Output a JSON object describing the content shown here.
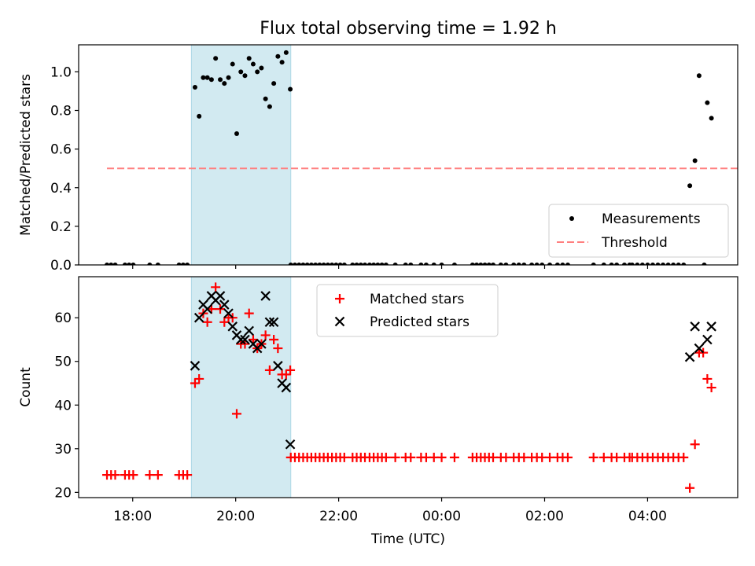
{
  "title": "Flux total observing time = 1.92 h",
  "colors": {
    "shade": "#add8e6",
    "matched": "#ff0000",
    "predicted": "#000000",
    "threshold": "#ff7f7f",
    "points": "#000000"
  },
  "chart_data": [
    {
      "type": "scatter",
      "ylabel": "Matched/Predicted stars",
      "xlim": [
        16.95,
        29.75
      ],
      "ylim": [
        0,
        1.14
      ],
      "yticks": [
        0.0,
        0.2,
        0.4,
        0.6,
        0.8,
        1.0
      ],
      "ytick_labels": [
        "0.0",
        "0.2",
        "0.4",
        "0.6",
        "0.8",
        "1.0"
      ],
      "shaded_x_range": [
        19.14,
        21.07
      ],
      "threshold": {
        "y": 0.5,
        "x_range": [
          17.5,
          30.2
        ]
      },
      "legend": {
        "position": "lower-right",
        "entries": [
          "Measurements",
          "Threshold"
        ]
      },
      "series": [
        {
          "name": "Measurements",
          "points": [
            [
              17.5,
              0
            ],
            [
              17.58,
              0
            ],
            [
              17.66,
              0
            ],
            [
              17.85,
              0
            ],
            [
              17.93,
              0
            ],
            [
              18.01,
              0
            ],
            [
              18.33,
              0
            ],
            [
              18.49,
              0
            ],
            [
              18.9,
              0
            ],
            [
              18.98,
              0
            ],
            [
              19.06,
              0
            ],
            [
              19.21,
              0.92
            ],
            [
              19.29,
              0.77
            ],
            [
              19.37,
              0.97
            ],
            [
              19.45,
              0.97
            ],
            [
              19.53,
              0.96
            ],
            [
              19.61,
              1.07
            ],
            [
              19.7,
              0.96
            ],
            [
              19.78,
              0.94
            ],
            [
              19.86,
              0.97
            ],
            [
              19.94,
              1.04
            ],
            [
              20.02,
              0.68
            ],
            [
              20.1,
              1.0
            ],
            [
              20.18,
              0.98
            ],
            [
              20.26,
              1.07
            ],
            [
              20.34,
              1.04
            ],
            [
              20.42,
              1.0
            ],
            [
              20.5,
              1.02
            ],
            [
              20.58,
              0.86
            ],
            [
              20.66,
              0.82
            ],
            [
              20.74,
              0.94
            ],
            [
              20.82,
              1.08
            ],
            [
              20.9,
              1.05
            ],
            [
              20.98,
              1.1
            ],
            [
              21.06,
              0.91
            ],
            [
              21.07,
              0
            ],
            [
              21.15,
              0
            ],
            [
              21.23,
              0
            ],
            [
              21.31,
              0
            ],
            [
              21.39,
              0
            ],
            [
              21.47,
              0
            ],
            [
              21.55,
              0
            ],
            [
              21.63,
              0
            ],
            [
              21.71,
              0
            ],
            [
              21.79,
              0
            ],
            [
              21.87,
              0
            ],
            [
              21.95,
              0
            ],
            [
              22.03,
              0
            ],
            [
              22.11,
              0
            ],
            [
              22.27,
              0
            ],
            [
              22.35,
              0
            ],
            [
              22.43,
              0
            ],
            [
              22.51,
              0
            ],
            [
              22.6,
              0
            ],
            [
              22.68,
              0
            ],
            [
              22.76,
              0
            ],
            [
              22.84,
              0
            ],
            [
              22.92,
              0
            ],
            [
              23.1,
              0
            ],
            [
              23.3,
              0
            ],
            [
              23.4,
              0
            ],
            [
              23.6,
              0
            ],
            [
              23.7,
              0
            ],
            [
              23.85,
              0
            ],
            [
              24.0,
              0
            ],
            [
              24.25,
              0
            ],
            [
              24.6,
              0
            ],
            [
              24.68,
              0
            ],
            [
              24.76,
              0
            ],
            [
              24.84,
              0
            ],
            [
              24.92,
              0
            ],
            [
              25.0,
              0
            ],
            [
              25.15,
              0
            ],
            [
              25.25,
              0
            ],
            [
              25.4,
              0
            ],
            [
              25.5,
              0
            ],
            [
              25.6,
              0
            ],
            [
              25.75,
              0
            ],
            [
              25.85,
              0
            ],
            [
              25.95,
              0
            ],
            [
              26.1,
              0
            ],
            [
              26.25,
              0
            ],
            [
              26.35,
              0
            ],
            [
              26.45,
              0
            ],
            [
              26.95,
              0
            ],
            [
              27.15,
              0
            ],
            [
              27.3,
              0
            ],
            [
              27.4,
              0
            ],
            [
              27.55,
              0
            ],
            [
              27.65,
              0
            ],
            [
              27.7,
              0
            ],
            [
              27.8,
              0
            ],
            [
              27.9,
              0
            ],
            [
              28.0,
              0
            ],
            [
              28.1,
              0
            ],
            [
              28.2,
              0
            ],
            [
              28.3,
              0
            ],
            [
              28.4,
              0
            ],
            [
              28.5,
              0
            ],
            [
              28.6,
              0
            ],
            [
              28.7,
              0
            ],
            [
              29.1,
              0
            ],
            [
              28.82,
              0.41
            ],
            [
              28.92,
              0.54
            ],
            [
              29.0,
              0.98
            ],
            [
              29.16,
              0.84
            ],
            [
              29.24,
              0.76
            ]
          ]
        }
      ]
    },
    {
      "type": "scatter",
      "ylabel": "Count",
      "xlabel": "Time (UTC)",
      "xlim": [
        16.95,
        29.75
      ],
      "ylim": [
        18.8,
        69.4
      ],
      "yticks": [
        20,
        30,
        40,
        50,
        60
      ],
      "ytick_labels": [
        "20",
        "30",
        "40",
        "50",
        "60"
      ],
      "xticks": [
        18,
        20,
        22,
        24,
        26,
        28
      ],
      "xtick_labels": [
        "18:00",
        "20:00",
        "22:00",
        "00:00",
        "02:00",
        "04:00"
      ],
      "shaded_x_range": [
        19.14,
        21.07
      ],
      "legend": {
        "position": "top-center",
        "entries": [
          "Matched stars",
          "Predicted stars"
        ]
      },
      "series": [
        {
          "name": "Matched stars",
          "marker": "plus",
          "points": [
            [
              17.5,
              24
            ],
            [
              17.58,
              24
            ],
            [
              17.66,
              24
            ],
            [
              17.85,
              24
            ],
            [
              17.93,
              24
            ],
            [
              18.01,
              24
            ],
            [
              18.33,
              24
            ],
            [
              18.49,
              24
            ],
            [
              18.9,
              24
            ],
            [
              18.98,
              24
            ],
            [
              19.06,
              24
            ],
            [
              19.21,
              45
            ],
            [
              19.29,
              46
            ],
            [
              19.37,
              61
            ],
            [
              19.45,
              59
            ],
            [
              19.53,
              62
            ],
            [
              19.61,
              67
            ],
            [
              19.7,
              62
            ],
            [
              19.78,
              59
            ],
            [
              19.86,
              60
            ],
            [
              19.94,
              60
            ],
            [
              20.02,
              38
            ],
            [
              20.1,
              54
            ],
            [
              20.18,
              54
            ],
            [
              20.26,
              61
            ],
            [
              20.34,
              55
            ],
            [
              20.42,
              53
            ],
            [
              20.5,
              54
            ],
            [
              20.58,
              56
            ],
            [
              20.66,
              48
            ],
            [
              20.74,
              55
            ],
            [
              20.82,
              53
            ],
            [
              20.9,
              47
            ],
            [
              20.98,
              47
            ],
            [
              21.06,
              48
            ],
            [
              21.07,
              28
            ],
            [
              21.15,
              28
            ],
            [
              21.23,
              28
            ],
            [
              21.31,
              28
            ],
            [
              21.39,
              28
            ],
            [
              21.47,
              28
            ],
            [
              21.55,
              28
            ],
            [
              21.63,
              28
            ],
            [
              21.71,
              28
            ],
            [
              21.79,
              28
            ],
            [
              21.87,
              28
            ],
            [
              21.95,
              28
            ],
            [
              22.03,
              28
            ],
            [
              22.11,
              28
            ],
            [
              22.27,
              28
            ],
            [
              22.35,
              28
            ],
            [
              22.43,
              28
            ],
            [
              22.51,
              28
            ],
            [
              22.6,
              28
            ],
            [
              22.68,
              28
            ],
            [
              22.76,
              28
            ],
            [
              22.84,
              28
            ],
            [
              22.92,
              28
            ],
            [
              23.1,
              28
            ],
            [
              23.3,
              28
            ],
            [
              23.4,
              28
            ],
            [
              23.6,
              28
            ],
            [
              23.7,
              28
            ],
            [
              23.85,
              28
            ],
            [
              24.0,
              28
            ],
            [
              24.25,
              28
            ],
            [
              24.6,
              28
            ],
            [
              24.68,
              28
            ],
            [
              24.76,
              28
            ],
            [
              24.84,
              28
            ],
            [
              24.92,
              28
            ],
            [
              25.0,
              28
            ],
            [
              25.15,
              28
            ],
            [
              25.25,
              28
            ],
            [
              25.4,
              28
            ],
            [
              25.5,
              28
            ],
            [
              25.6,
              28
            ],
            [
              25.75,
              28
            ],
            [
              25.85,
              28
            ],
            [
              25.95,
              28
            ],
            [
              26.1,
              28
            ],
            [
              26.25,
              28
            ],
            [
              26.35,
              28
            ],
            [
              26.45,
              28
            ],
            [
              26.95,
              28
            ],
            [
              27.15,
              28
            ],
            [
              27.3,
              28
            ],
            [
              27.4,
              28
            ],
            [
              27.55,
              28
            ],
            [
              27.65,
              28
            ],
            [
              27.7,
              28
            ],
            [
              27.8,
              28
            ],
            [
              27.9,
              28
            ],
            [
              28.0,
              28
            ],
            [
              28.1,
              28
            ],
            [
              28.2,
              28
            ],
            [
              28.3,
              28
            ],
            [
              28.4,
              28
            ],
            [
              28.5,
              28
            ],
            [
              28.6,
              28
            ],
            [
              28.7,
              28
            ],
            [
              28.82,
              21
            ],
            [
              28.92,
              31
            ],
            [
              29.0,
              52
            ],
            [
              29.08,
              52
            ],
            [
              29.16,
              46
            ],
            [
              29.24,
              44
            ]
          ]
        },
        {
          "name": "Predicted stars",
          "marker": "x",
          "points": [
            [
              19.21,
              49
            ],
            [
              19.29,
              60
            ],
            [
              19.37,
              63
            ],
            [
              19.45,
              62
            ],
            [
              19.53,
              65
            ],
            [
              19.61,
              64
            ],
            [
              19.7,
              65
            ],
            [
              19.78,
              63
            ],
            [
              19.86,
              61
            ],
            [
              19.94,
              58
            ],
            [
              20.02,
              56
            ],
            [
              20.1,
              55
            ],
            [
              20.18,
              55
            ],
            [
              20.26,
              57
            ],
            [
              20.34,
              54
            ],
            [
              20.42,
              53
            ],
            [
              20.5,
              54
            ],
            [
              20.58,
              65
            ],
            [
              20.66,
              59
            ],
            [
              20.74,
              59
            ],
            [
              20.82,
              49
            ],
            [
              20.9,
              45
            ],
            [
              20.98,
              44
            ],
            [
              21.06,
              31
            ],
            [
              28.82,
              51
            ],
            [
              28.92,
              58
            ],
            [
              29.0,
              53
            ],
            [
              29.16,
              55
            ],
            [
              29.24,
              58
            ]
          ]
        }
      ]
    }
  ]
}
